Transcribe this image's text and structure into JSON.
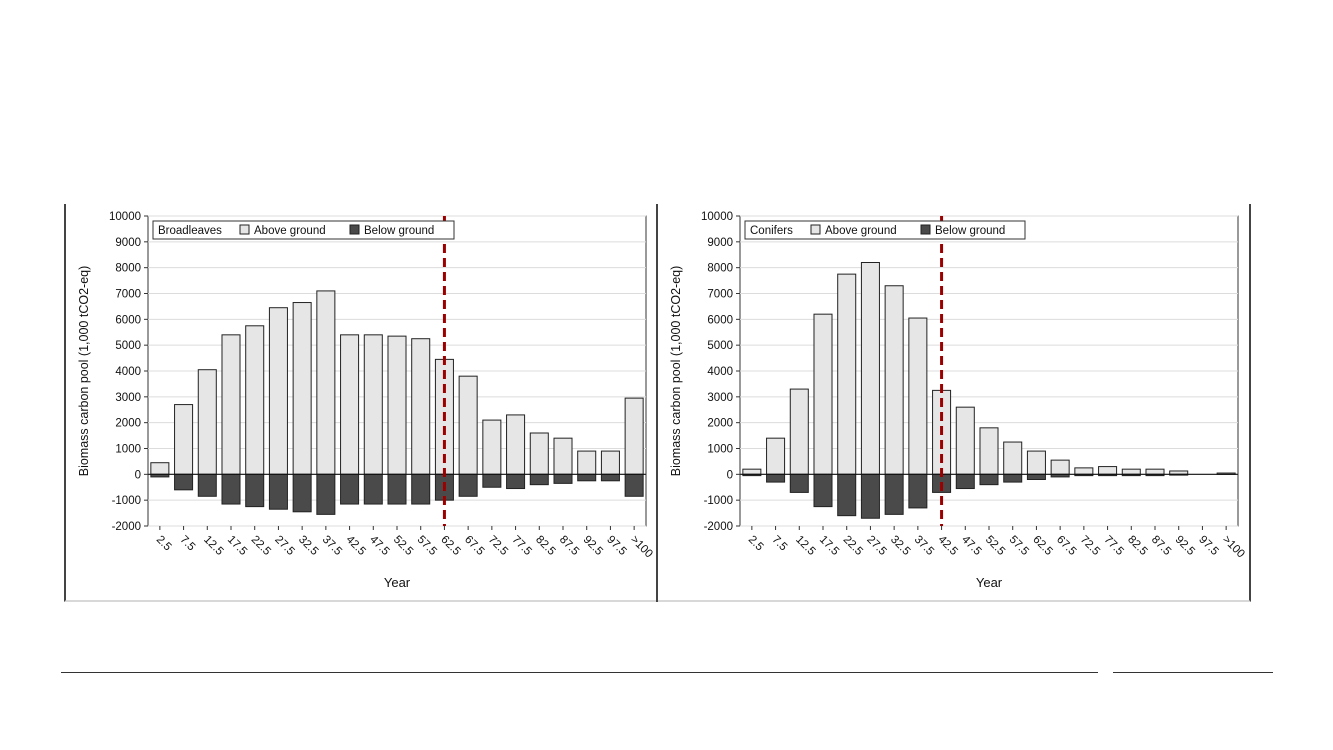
{
  "chart_data": [
    {
      "type": "bar",
      "title": "Broadleaves",
      "xlabel": "Year",
      "ylabel": "Biomass carbon pool (1,000 tCO2-eq)",
      "ylim": [
        -2000,
        10000
      ],
      "yticks": [
        "-2000",
        "-1000",
        "0",
        "1000",
        "2000",
        "3000",
        "4000",
        "5000",
        "6000",
        "7000",
        "8000",
        "9000",
        "10000"
      ],
      "categories": [
        "2.5",
        "7.5",
        "12.5",
        "17.5",
        "22.5",
        "27.5",
        "32.5",
        "37.5",
        "42.5",
        "47.5",
        "52.5",
        "57.5",
        "62.5",
        "67.5",
        "72.5",
        "77.5",
        "82.5",
        "87.5",
        "92.5",
        "97.5",
        ">100"
      ],
      "series": [
        {
          "name": "Above ground",
          "color": "#e6e6e6",
          "values": [
            450,
            2700,
            4050,
            5400,
            5750,
            6450,
            6650,
            7100,
            5400,
            5400,
            5350,
            5250,
            4450,
            3800,
            2100,
            2300,
            1600,
            1400,
            900,
            900,
            2950
          ]
        },
        {
          "name": "Below ground",
          "color": "#4a4a4a",
          "values": [
            -100,
            -600,
            -850,
            -1150,
            -1250,
            -1350,
            -1450,
            -1550,
            -1150,
            -1150,
            -1150,
            -1150,
            -1000,
            -850,
            -500,
            -550,
            -400,
            -350,
            -250,
            -250,
            -850
          ]
        }
      ],
      "reference_line": {
        "category": "62.5",
        "color": "#9b0000"
      },
      "legend": "top-left",
      "grid": "horizontal"
    },
    {
      "type": "bar",
      "title": "Conifers",
      "xlabel": "Year",
      "ylabel": "Biomass carbon pool (1,000 tCO2-eq)",
      "ylim": [
        -2000,
        10000
      ],
      "yticks": [
        "-2000",
        "-1000",
        "0",
        "1000",
        "2000",
        "3000",
        "4000",
        "5000",
        "6000",
        "7000",
        "8000",
        "9000",
        "10000"
      ],
      "categories": [
        "2.5",
        "7.5",
        "12.5",
        "17.5",
        "22.5",
        "27.5",
        "32.5",
        "37.5",
        "42.5",
        "47.5",
        "52.5",
        "57.5",
        "62.5",
        "67.5",
        "72.5",
        "77.5",
        "82.5",
        "87.5",
        "92.5",
        "97.5",
        ">100"
      ],
      "series": [
        {
          "name": "Above ground",
          "color": "#e6e6e6",
          "values": [
            200,
            1400,
            3300,
            6200,
            7750,
            8200,
            7300,
            6050,
            3250,
            2600,
            1800,
            1250,
            900,
            550,
            250,
            300,
            200,
            200,
            130,
            0,
            50
          ]
        },
        {
          "name": "Below ground",
          "color": "#4a4a4a",
          "values": [
            -50,
            -300,
            -700,
            -1250,
            -1600,
            -1700,
            -1550,
            -1300,
            -700,
            -550,
            -400,
            -300,
            -200,
            -100,
            -50,
            -50,
            -50,
            -50,
            -30,
            0,
            0
          ]
        }
      ],
      "reference_line": {
        "category": "42.5",
        "color": "#9b0000"
      },
      "legend": "top-left",
      "grid": "horizontal"
    }
  ]
}
